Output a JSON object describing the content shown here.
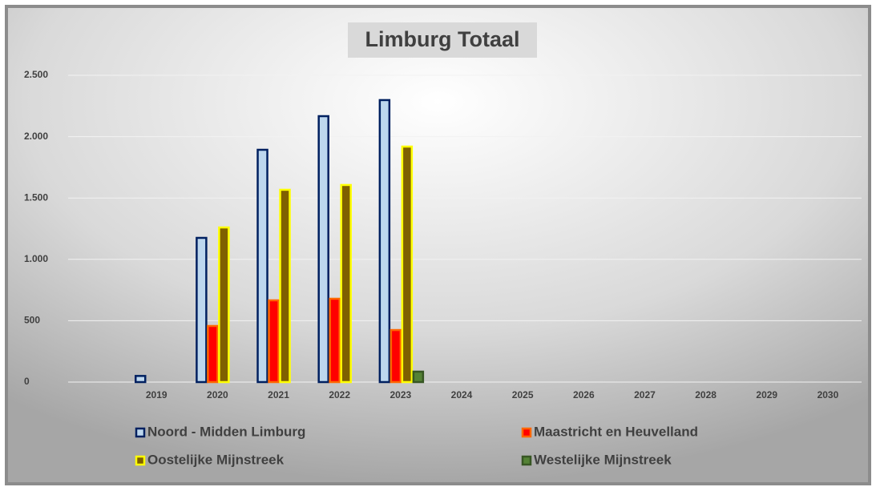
{
  "chart_data": {
    "type": "bar",
    "title": "Limburg Totaal",
    "categories": [
      null,
      "2019",
      "2020",
      "2021",
      "2022",
      "2023",
      "2024",
      "2025",
      "2026",
      "2027",
      "2028",
      "2029",
      "2030"
    ],
    "series": [
      {
        "name": "Noord - Midden Limburg",
        "color": "#bdd7ee",
        "edge": "#002060",
        "values": [
          null,
          50,
          1175,
          1893,
          2167,
          2298,
          null,
          null,
          null,
          null,
          null,
          null,
          null
        ]
      },
      {
        "name": "Maastricht en Heuvelland",
        "color": "#ff0000",
        "edge": "#ff6600",
        "values": [
          null,
          null,
          457,
          666,
          679,
          424,
          null,
          null,
          null,
          null,
          null,
          null,
          null
        ]
      },
      {
        "name": "Oostelijke Mijnstreek",
        "color": "#7f6000",
        "edge": "#ffff00",
        "values": [
          null,
          null,
          1260,
          1567,
          1606,
          1919,
          null,
          null,
          null,
          null,
          null,
          null,
          null
        ]
      },
      {
        "name": "Westelijke Mijnstreek",
        "color": "#548235",
        "edge": "#375623",
        "values": [
          null,
          null,
          null,
          null,
          null,
          85,
          null,
          null,
          null,
          null,
          null,
          null,
          null
        ]
      }
    ],
    "ylim": [
      0,
      2500
    ],
    "yticks": [
      0,
      500,
      {
        "value": 1000,
        "label": "1.000"
      },
      {
        "value": 1500,
        "label": "1.500"
      },
      {
        "value": 2000,
        "label": "2.000"
      },
      {
        "value": 2500,
        "label": "2.500"
      }
    ],
    "grid": true
  }
}
